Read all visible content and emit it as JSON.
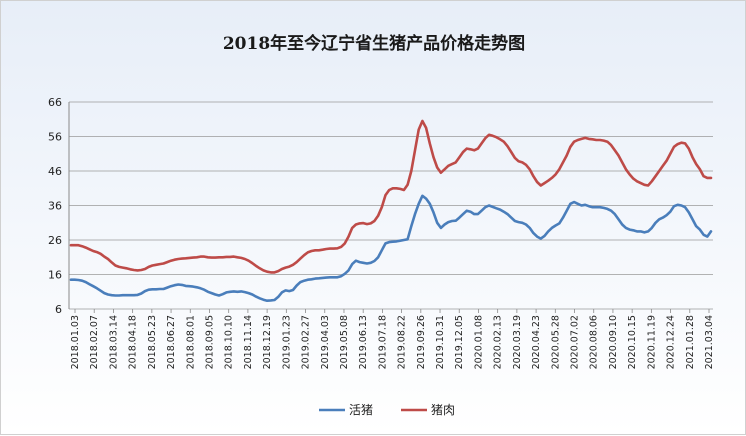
{
  "chart_data": {
    "type": "line",
    "title": "2018年至今辽宁省生猪产品价格走势图",
    "xlabel": "",
    "ylabel": "",
    "ylim": [
      6,
      66
    ],
    "yticks": [
      6,
      16,
      26,
      36,
      46,
      56,
      66
    ],
    "grid": true,
    "legend_position": "bottom",
    "x_tick_labels": [
      "2018.01.03",
      "2018.02.07",
      "2018.03.14",
      "2018.04.18",
      "2018.05.23",
      "2018.06.27",
      "2018.08.01",
      "2018.09.05",
      "2018.10.10",
      "2018.11.14",
      "2018.12.19",
      "2019.01.23",
      "2019.02.27",
      "2019.04.03",
      "2019.05.08",
      "2019.06.13",
      "2019.07.18",
      "2019.08.22",
      "2019.09.26",
      "2019.10.31",
      "2019.12.05",
      "2020.01.08",
      "2020.02.13",
      "2020.03.19",
      "2020.04.23",
      "2020.05.28",
      "2020.07.02",
      "2020.08.06",
      "2020.09.10",
      "2020.10.15",
      "2020.11.19",
      "2020.12.24",
      "2021.01.28",
      "2021.03.04"
    ],
    "series": [
      {
        "name": "活猪",
        "color": "#4a7ebb",
        "values": [
          14.5,
          14.5,
          14.4,
          14.2,
          13.8,
          13.2,
          12.6,
          12.0,
          11.3,
          10.6,
          10.2,
          10.0,
          9.9,
          9.9,
          10.0,
          10.0,
          10.0,
          10.0,
          10.1,
          10.5,
          11.2,
          11.6,
          11.7,
          11.7,
          11.8,
          11.8,
          12.2,
          12.6,
          12.9,
          13.1,
          13.0,
          12.7,
          12.6,
          12.5,
          12.3,
          12.0,
          11.6,
          11.0,
          10.6,
          10.2,
          9.9,
          10.3,
          10.8,
          11.0,
          11.1,
          11.0,
          11.1,
          10.9,
          10.6,
          10.2,
          9.6,
          9.1,
          8.7,
          8.4,
          8.5,
          8.6,
          9.5,
          10.8,
          11.4,
          11.2,
          11.5,
          12.8,
          13.8,
          14.2,
          14.5,
          14.6,
          14.8,
          14.9,
          15.0,
          15.1,
          15.2,
          15.2,
          15.2,
          15.5,
          16.2,
          17.2,
          19.0,
          20.0,
          19.6,
          19.4,
          19.2,
          19.4,
          19.9,
          21.0,
          23.0,
          25.0,
          25.4,
          25.5,
          25.6,
          25.8,
          26.0,
          26.2,
          30.0,
          33.5,
          36.5,
          38.8,
          38.0,
          36.5,
          34.0,
          31.0,
          29.5,
          30.5,
          31.2,
          31.5,
          31.6,
          32.5,
          33.5,
          34.5,
          34.2,
          33.5,
          33.5,
          34.5,
          35.5,
          36.0,
          35.6,
          35.2,
          34.8,
          34.2,
          33.5,
          32.5,
          31.5,
          31.2,
          31.0,
          30.5,
          29.5,
          28.0,
          27.0,
          26.4,
          27.2,
          28.5,
          29.5,
          30.2,
          30.8,
          32.5,
          34.5,
          36.5,
          37.0,
          36.5,
          36.0,
          36.2,
          35.8,
          35.5,
          35.5,
          35.5,
          35.3,
          35.0,
          34.5,
          33.5,
          32.0,
          30.5,
          29.5,
          29.0,
          28.8,
          28.5,
          28.5,
          28.2,
          28.5,
          29.5,
          31.0,
          32.0,
          32.5,
          33.2,
          34.2,
          35.8,
          36.2,
          36.0,
          35.5,
          34.0,
          32.0,
          30.0,
          29.0,
          27.5,
          27.0,
          28.5
        ]
      },
      {
        "name": "猪肉",
        "color": "#be4b48",
        "values": [
          24.5,
          24.5,
          24.5,
          24.2,
          23.8,
          23.3,
          22.8,
          22.5,
          22.0,
          21.2,
          20.5,
          19.5,
          18.6,
          18.2,
          18.0,
          17.8,
          17.5,
          17.3,
          17.2,
          17.3,
          17.6,
          18.2,
          18.6,
          18.8,
          19.0,
          19.2,
          19.6,
          20.0,
          20.3,
          20.5,
          20.6,
          20.7,
          20.8,
          20.9,
          21.0,
          21.2,
          21.2,
          21.0,
          20.9,
          20.9,
          21.0,
          21.0,
          21.1,
          21.1,
          21.2,
          21.0,
          20.8,
          20.5,
          20.0,
          19.3,
          18.5,
          17.8,
          17.2,
          16.8,
          16.6,
          16.6,
          17.0,
          17.6,
          18.0,
          18.3,
          18.8,
          19.6,
          20.6,
          21.6,
          22.4,
          22.8,
          23.0,
          23.0,
          23.2,
          23.4,
          23.5,
          23.5,
          23.6,
          24.0,
          25.0,
          27.0,
          29.5,
          30.5,
          30.8,
          30.9,
          30.6,
          30.8,
          31.5,
          33.0,
          35.5,
          39.0,
          40.5,
          41.0,
          41.0,
          40.8,
          40.5,
          42.0,
          46.0,
          52.0,
          58.0,
          60.5,
          58.5,
          54.0,
          50.0,
          47.0,
          45.5,
          46.5,
          47.5,
          48.0,
          48.5,
          50.0,
          51.5,
          52.5,
          52.3,
          52.0,
          52.5,
          54.0,
          55.5,
          56.5,
          56.2,
          55.8,
          55.2,
          54.5,
          53.2,
          51.5,
          49.8,
          48.8,
          48.5,
          47.8,
          46.5,
          44.5,
          42.8,
          41.8,
          42.5,
          43.2,
          44.0,
          45.0,
          46.5,
          48.5,
          50.5,
          53.0,
          54.5,
          55.0,
          55.3,
          55.6,
          55.3,
          55.2,
          55.0,
          55.0,
          54.8,
          54.5,
          53.5,
          52.0,
          50.5,
          48.5,
          46.5,
          45.0,
          43.8,
          43.0,
          42.5,
          42.0,
          41.8,
          43.0,
          44.5,
          46.0,
          47.5,
          49.0,
          51.0,
          53.0,
          53.8,
          54.2,
          54.0,
          52.5,
          50.0,
          48.0,
          46.5,
          44.5,
          44.0,
          44.0
        ]
      }
    ]
  }
}
